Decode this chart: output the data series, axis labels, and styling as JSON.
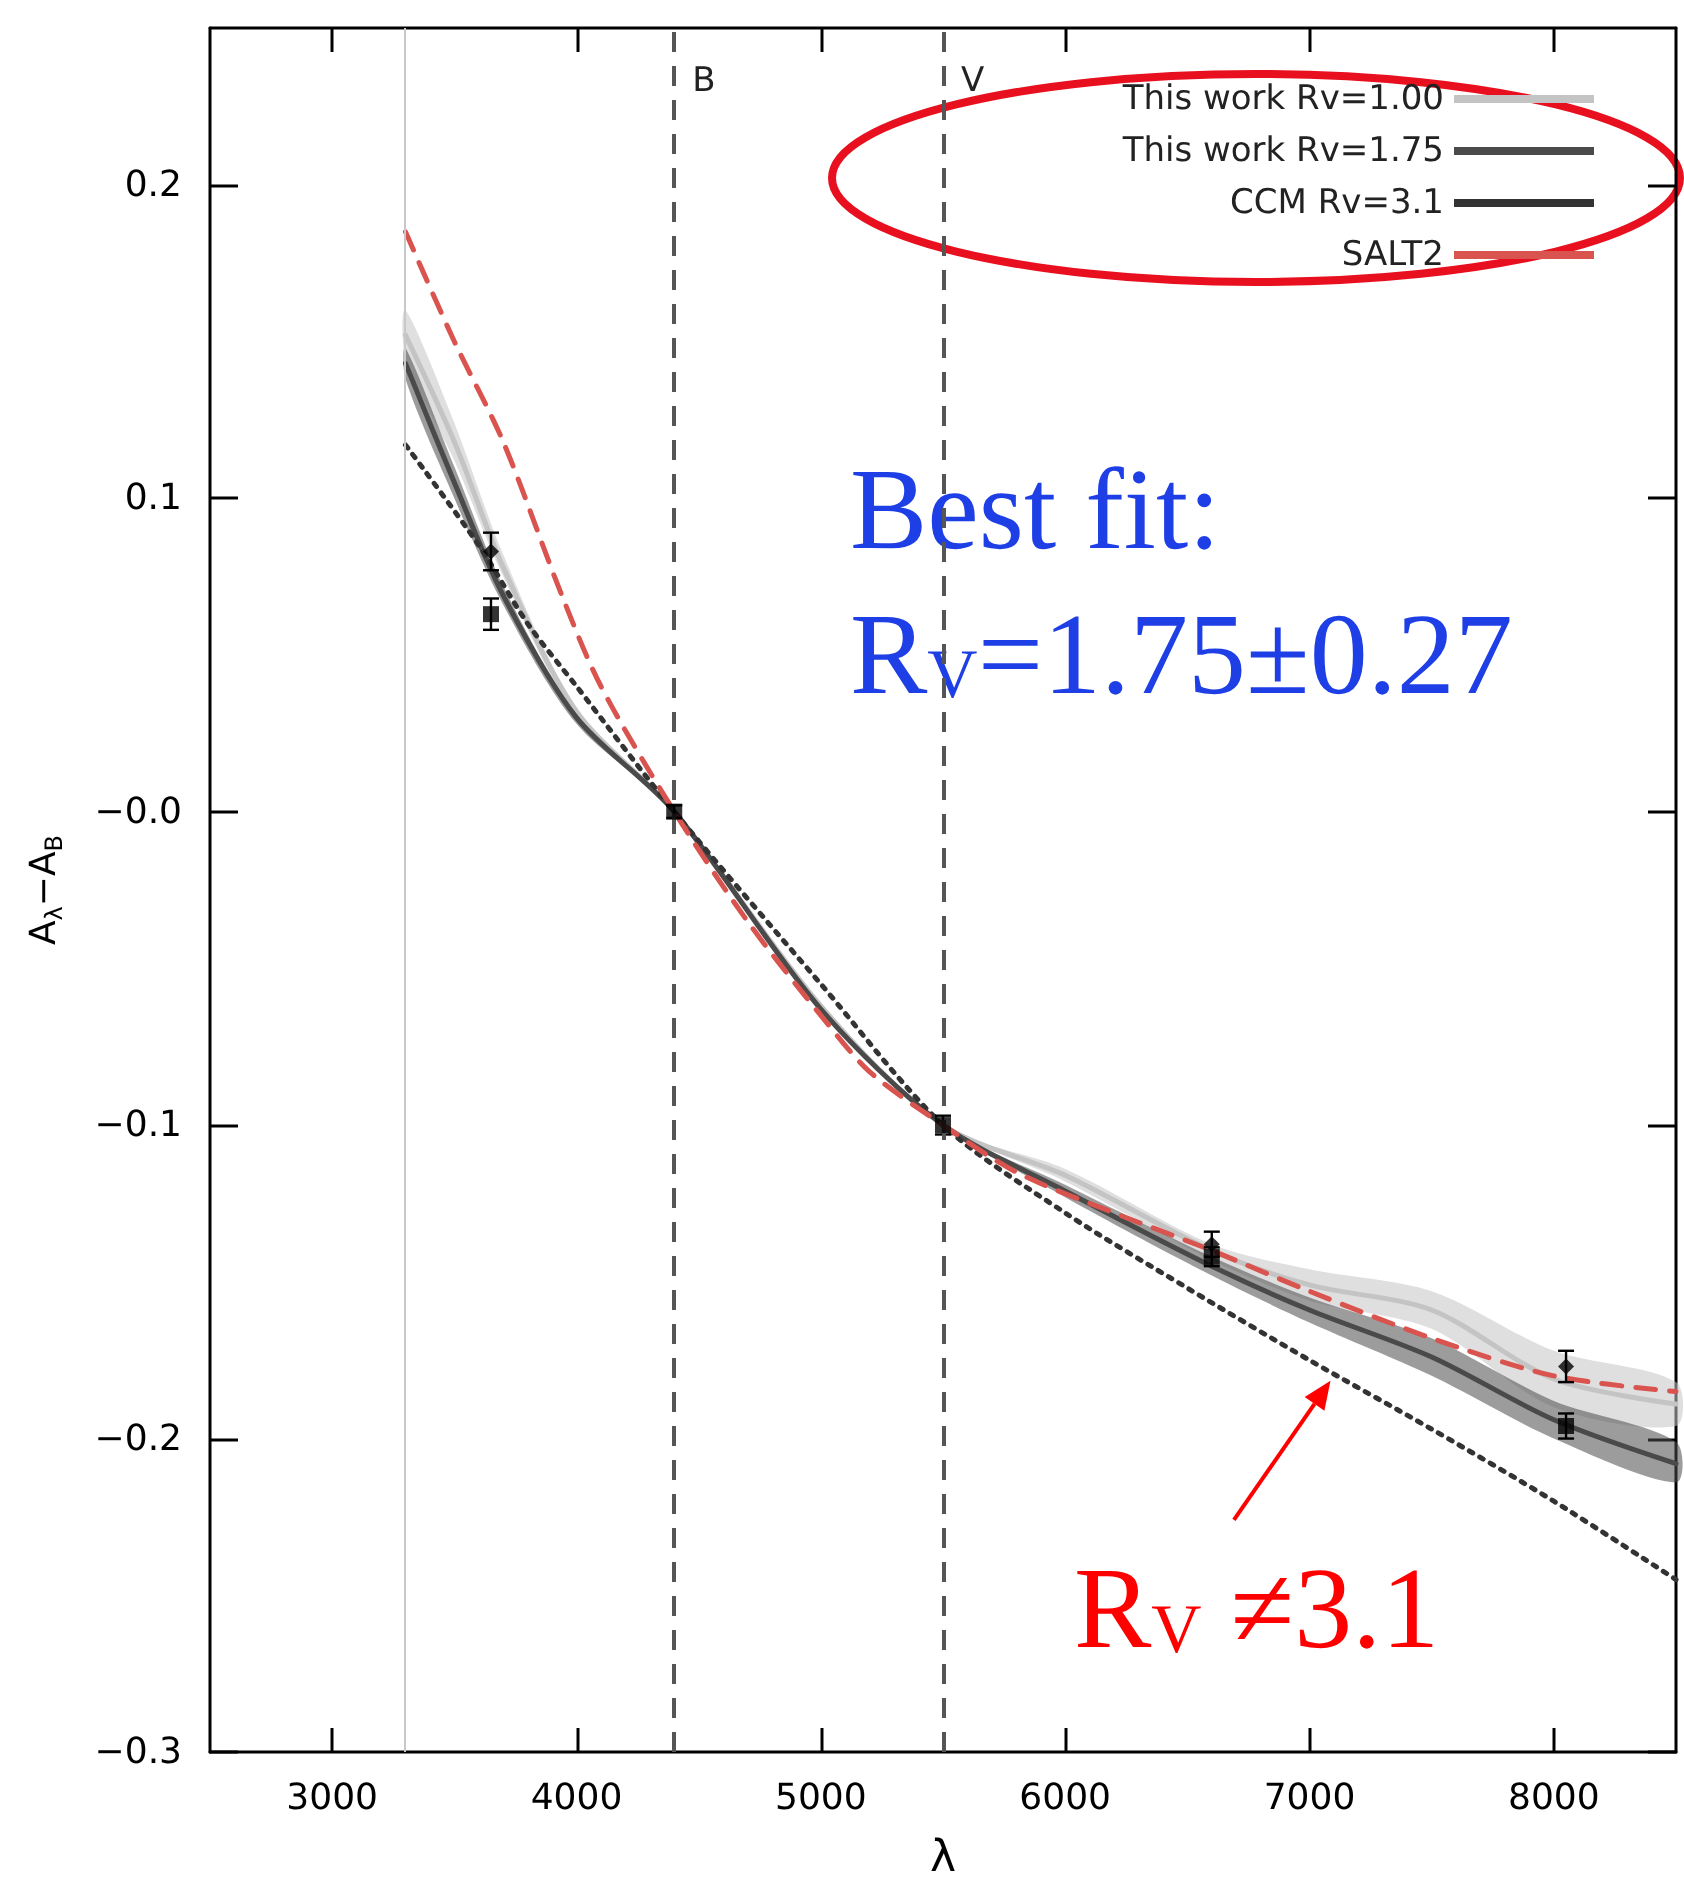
{
  "chart_data": {
    "type": "line",
    "xlabel": "λ",
    "ylabel": "A$_{λ}$−A$_{B}$",
    "xlim": [
      2500,
      8500
    ],
    "xticks": [
      3000,
      4000,
      5000,
      6000,
      7000,
      8000
    ],
    "ylim": [
      -0.3,
      0.25
    ],
    "yticks": [
      0.2,
      0.1,
      {
        "value": 0,
        "label": "−0.0"
      },
      {
        "value": -0.1,
        "label": "−0.1"
      },
      {
        "value": -0.2,
        "label": "−0.2"
      },
      {
        "value": -0.3,
        "label": "−0.3"
      }
    ],
    "grid": false,
    "legend": "top right",
    "series": [
      {
        "name": "This work Rv=1.00",
        "color": "#c4c4c4",
        "line_style": "solid",
        "x": [
          3300,
          3500,
          3700,
          4000,
          4400,
          5000,
          5500,
          6000,
          6600,
          7000,
          7500,
          8000,
          8500
        ],
        "values": [
          0.152,
          0.118,
          0.078,
          0.032,
          0,
          -0.062,
          -0.1,
          -0.116,
          -0.14,
          -0.151,
          -0.159,
          -0.181,
          -0.189
        ],
        "lower": [
          0.145,
          0.112,
          0.075,
          0.03,
          0,
          -0.062,
          -0.1,
          -0.118,
          -0.143,
          -0.156,
          -0.165,
          -0.19,
          -0.196
        ],
        "upper": [
          0.16,
          0.124,
          0.082,
          0.033,
          0,
          -0.062,
          -0.1,
          -0.114,
          -0.138,
          -0.146,
          -0.153,
          -0.172,
          -0.182
        ]
      },
      {
        "name": "This work Rv=1.75",
        "color": "#4a4a4a",
        "line_style": "solid",
        "x": [
          3300,
          3500,
          3700,
          4000,
          4400,
          5000,
          5500,
          6000,
          6600,
          7000,
          7500,
          8000,
          8500
        ],
        "values": [
          0.143,
          0.105,
          0.069,
          0.03,
          0,
          -0.063,
          -0.1,
          -0.121,
          -0.145,
          -0.159,
          -0.174,
          -0.194,
          -0.208
        ],
        "lower": [
          0.138,
          0.1,
          0.066,
          0.028,
          0,
          -0.064,
          -0.1,
          -0.123,
          -0.148,
          -0.163,
          -0.18,
          -0.2,
          -0.214
        ],
        "upper": [
          0.148,
          0.11,
          0.072,
          0.031,
          0,
          -0.062,
          -0.1,
          -0.119,
          -0.142,
          -0.155,
          -0.168,
          -0.188,
          -0.201
        ]
      },
      {
        "name": "CCM Rv=3.1",
        "color": "#333333",
        "line_style": "dotted",
        "x": [
          3300,
          3600,
          3800,
          4000,
          4400,
          5000,
          5500,
          6000,
          6500,
          7000,
          7500,
          8000,
          8500
        ],
        "values": [
          0.117,
          0.085,
          0.06,
          0.04,
          0,
          -0.055,
          -0.1,
          -0.128,
          -0.152,
          -0.175,
          -0.197,
          -0.22,
          -0.245
        ]
      },
      {
        "name": "SALT2",
        "color": "#d9534f",
        "line_style": "dashed",
        "x": [
          3300,
          3500,
          3700,
          3940,
          4100,
          4400,
          4700,
          5000,
          5200,
          5500,
          5800,
          6200,
          6600,
          7000,
          7500,
          8000,
          8500
        ],
        "values": [
          0.185,
          0.15,
          0.118,
          0.069,
          0.04,
          0,
          -0.035,
          -0.065,
          -0.083,
          -0.1,
          -0.115,
          -0.128,
          -0.14,
          -0.153,
          -0.168,
          -0.18,
          -0.185
        ]
      },
      {
        "type": "scatter",
        "color": "#000000",
        "marker": "diamond",
        "x": [
          3650,
          6600,
          8050
        ],
        "values": [
          0.083,
          -0.138,
          -0.177
        ],
        "errors": [
          0.006,
          0.004,
          0.005
        ]
      },
      {
        "type": "scatter",
        "color": "#000000",
        "marker": "square",
        "x": [
          3650,
          4400,
          5500,
          6600,
          8050
        ],
        "values": [
          0.063,
          0,
          -0.1,
          -0.142,
          -0.196
        ],
        "errors": [
          0.005,
          0.002,
          0.003,
          0.003,
          0.004
        ]
      }
    ],
    "ref_lines": [
      {
        "axis": "x",
        "value": 3300,
        "color": "#c8c8c8",
        "line_style": "solid"
      },
      {
        "axis": "x",
        "value": 4400,
        "label": "B",
        "color": "#555555",
        "line_style": "dashed"
      },
      {
        "axis": "x",
        "value": 5500,
        "label": "V",
        "color": "#555555",
        "line_style": "dashed"
      }
    ],
    "annotations": [
      "Best fit:\nR$_{V}$=1.75±0.27",
      {
        "text": "R$_{V}$ ≠3.1",
        "x": 7100,
        "y": -0.18
      }
    ]
  }
}
